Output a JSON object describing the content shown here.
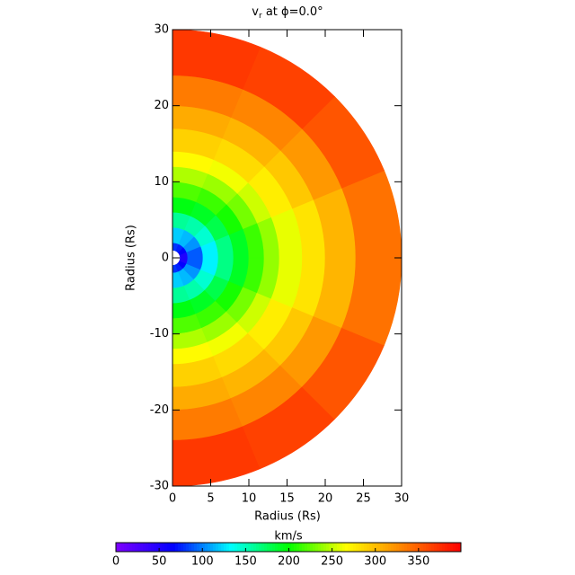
{
  "chart_data": {
    "type": "polar-heatmap",
    "title": {
      "main": "v",
      "sub": "r",
      "rest": " at ϕ=0.0°"
    },
    "x_label": "Radius (Rs)",
    "y_label": "Radius (Rs)",
    "xlim": [
      0,
      30
    ],
    "xticks": [
      0,
      5,
      10,
      15,
      20,
      25,
      30
    ],
    "ylim": [
      -30,
      30
    ],
    "yticks": [
      -30,
      -20,
      -10,
      0,
      10,
      20,
      30
    ],
    "r_edges": [
      1,
      2,
      4,
      6,
      8,
      10,
      12,
      14,
      17,
      20,
      24,
      30
    ],
    "lat_edges": [
      -90,
      -67.5,
      -45,
      -22.5,
      0,
      22.5,
      45,
      67.5,
      90
    ],
    "values": [
      [
        80,
        75,
        65,
        50,
        50,
        65,
        75,
        80
      ],
      [
        120,
        115,
        105,
        90,
        90,
        105,
        115,
        120
      ],
      [
        160,
        155,
        145,
        130,
        130,
        145,
        155,
        160
      ],
      [
        195,
        190,
        180,
        165,
        165,
        180,
        190,
        195
      ],
      [
        220,
        215,
        205,
        190,
        190,
        205,
        215,
        220
      ],
      [
        245,
        240,
        230,
        215,
        215,
        230,
        240,
        245
      ],
      [
        268,
        263,
        253,
        238,
        238,
        253,
        263,
        268
      ],
      [
        290,
        285,
        275,
        260,
        260,
        275,
        285,
        290
      ],
      [
        310,
        305,
        295,
        280,
        280,
        295,
        305,
        310
      ],
      [
        335,
        330,
        320,
        305,
        305,
        320,
        330,
        335
      ],
      [
        370,
        365,
        355,
        340,
        340,
        355,
        365,
        370
      ]
    ],
    "colorbar_label": "km/s",
    "clim": [
      0,
      399
    ],
    "cticks": [
      0,
      50,
      100,
      150,
      200,
      250,
      300,
      350
    ],
    "colormap": [
      "#7f00ff",
      "#0000ff",
      "#00ffff",
      "#00ff00",
      "#ffff00",
      "#ff8000",
      "#ff0000"
    ]
  }
}
